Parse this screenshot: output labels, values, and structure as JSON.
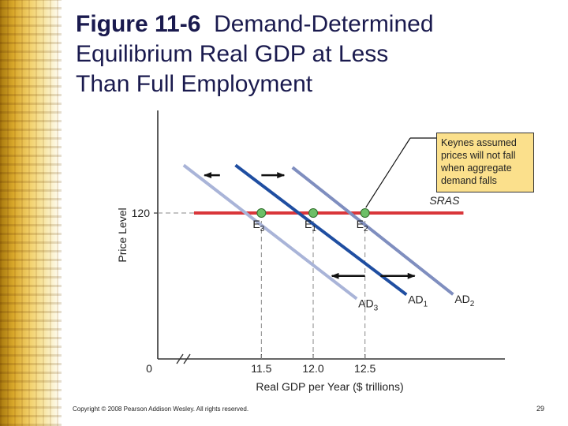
{
  "slide": {
    "title_fig": "Figure 11-6",
    "title_line1_rest": "Demand-Determined",
    "title_line2": "Equilibrium Real GDP at Less",
    "title_line3": "Than Full Employment",
    "callout": "Keynes assumed prices will not fall when aggregate demand falls",
    "copyright": "Copyright © 2008 Pearson Addison Wesley. All rights reserved.",
    "page_number": "29"
  },
  "chart_data": {
    "type": "line",
    "xlabel": "Real GDP per Year ($ trillions)",
    "ylabel": "Price Level",
    "x_ticks": [
      {
        "value": 11.5,
        "label": "11.5"
      },
      {
        "value": 12.0,
        "label": "12.0"
      },
      {
        "value": 12.5,
        "label": "12.5"
      }
    ],
    "y_ticks": [
      {
        "value": 120,
        "label": "120"
      }
    ],
    "origin_label": "0",
    "axis_break_on_x": true,
    "xlim": [
      10.5,
      13.85
    ],
    "ylim": [
      56,
      165
    ],
    "series": [
      {
        "name": "SRAS",
        "color": "#d9363a",
        "points": [
          [
            10.85,
            120
          ],
          [
            13.45,
            120
          ]
        ]
      },
      {
        "name": "AD3",
        "label_main": "AD",
        "label_sub": "3",
        "color": "#a9b4d8",
        "points": [
          [
            10.75,
            141.0
          ],
          [
            12.42,
            82.4
          ]
        ]
      },
      {
        "name": "AD1",
        "label_main": "AD",
        "label_sub": "1",
        "color": "#1f4ea1",
        "points": [
          [
            11.25,
            141.0
          ],
          [
            12.9,
            84.2
          ]
        ]
      },
      {
        "name": "AD2",
        "label_main": "AD",
        "label_sub": "2",
        "color": "#7f8ebf",
        "points": [
          [
            11.8,
            140.0
          ],
          [
            13.35,
            84.3
          ]
        ]
      }
    ],
    "equilibria": [
      {
        "label_main": "E",
        "label_sub": "3",
        "x": 11.5,
        "y": 120
      },
      {
        "label_main": "E",
        "label_sub": "1",
        "x": 12.0,
        "y": 120
      },
      {
        "label_main": "E",
        "label_sub": "2",
        "x": 12.5,
        "y": 120
      }
    ],
    "shift_arrows": [
      {
        "direction": "left",
        "from": [
          11.1,
          136.6
        ],
        "to": [
          10.95,
          136.6
        ]
      },
      {
        "direction": "right",
        "from": [
          11.5,
          136.6
        ],
        "to": [
          11.72,
          136.6
        ]
      },
      {
        "direction": "left",
        "from": [
          12.5,
          92.4
        ],
        "to": [
          12.18,
          92.4
        ]
      },
      {
        "direction": "right",
        "from": [
          12.65,
          92.4
        ],
        "to": [
          12.98,
          92.4
        ]
      }
    ],
    "colors": {
      "equilibrium_dot": "#6dbf67",
      "axis": "#333333",
      "dashed": "#888888"
    }
  }
}
